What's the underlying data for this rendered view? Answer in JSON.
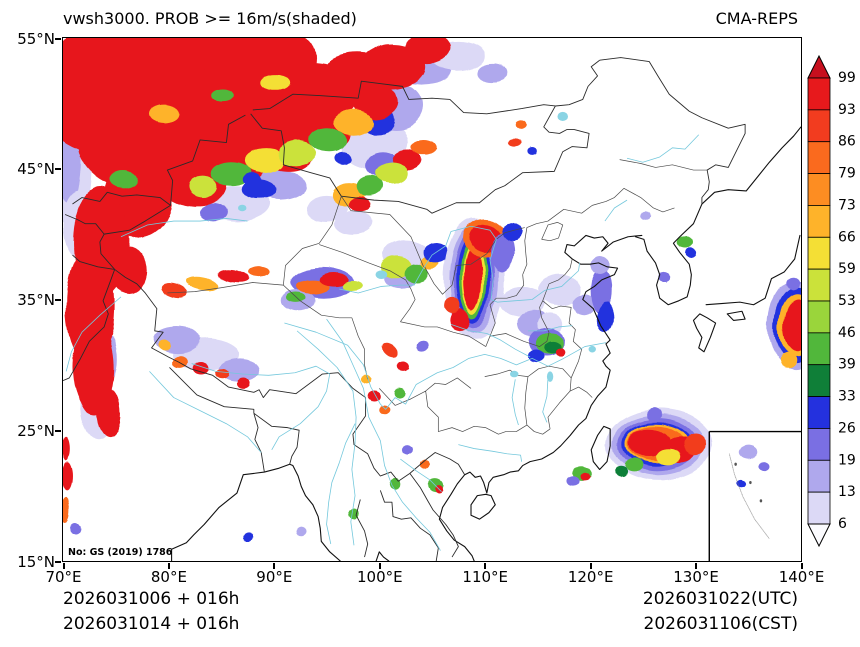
{
  "header": {
    "title": "vwsh3000. PROB >= 16m/s(shaded)",
    "model": "CMA-REPS"
  },
  "axes": {
    "x_ticks": [
      "70°E",
      "80°E",
      "90°E",
      "100°E",
      "110°E",
      "120°E",
      "130°E",
      "140°E"
    ],
    "y_ticks": [
      "55°N",
      "45°N",
      "35°N",
      "25°N",
      "15°N"
    ]
  },
  "colorbar": {
    "labels": [
      "99",
      "93",
      "86",
      "79",
      "73",
      "66",
      "59",
      "53",
      "46",
      "39",
      "33",
      "26",
      "19",
      "13",
      "6"
    ],
    "segment_colors": [
      "#C70F1E",
      "#E7191C",
      "#F23C1F",
      "#FA6A1E",
      "#FD8D22",
      "#FEB32A",
      "#F4DF35",
      "#CBE23A",
      "#9AD53B",
      "#51B73B",
      "#0F7F38",
      "#2431DE",
      "#7A6FE3",
      "#AFA8ED",
      "#DCD9F6",
      "#FBFBFE"
    ]
  },
  "map_note": "No: GS (2019) 1786",
  "footer": {
    "run_utc": "2026031006 + 016h",
    "run_cst": "2026031014 + 016h",
    "valid_utc": "2026031022(UTC)",
    "valid_cst": "2026031106(CST)"
  },
  "chart_data": {
    "type": "heatmap",
    "subtype": "filled-contour probability map",
    "variable": "vwsh3000 (vertical wind shear 0-3000 m)",
    "threshold": "probability of exceeding 16 m/s, shaded",
    "model": "CMA-REPS",
    "lon_range": [
      70,
      140
    ],
    "lat_range": [
      15,
      55
    ],
    "prob_levels": [
      6,
      13,
      19,
      26,
      33,
      39,
      46,
      53,
      59,
      66,
      73,
      79,
      86,
      93,
      99
    ],
    "regions_format": "[lon_deg, lat_deg, rx_deg, ry_deg, fill_color, rotation_deg?]",
    "shaded_regions": [
      [
        70.8,
        45.2,
        2.0,
        4.8,
        "#DCD9F6"
      ],
      [
        70.6,
        45.6,
        1.2,
        3.2,
        "#AFA8ED"
      ],
      [
        71.6,
        40.8,
        1.6,
        2.6,
        "#DCD9F6"
      ],
      [
        73.2,
        27.2,
        1.6,
        3.0,
        "#DCD9F6"
      ],
      [
        74.0,
        30.5,
        1.2,
        2.0,
        "#AFA8ED"
      ],
      [
        86.5,
        42.3,
        3.0,
        1.4,
        "#DCD9F6"
      ],
      [
        90.5,
        43.8,
        2.6,
        1.2,
        "#AFA8ED"
      ],
      [
        95.0,
        42.0,
        2.0,
        1.0,
        "#DCD9F6"
      ],
      [
        97.5,
        40.8,
        1.8,
        0.9,
        "#DCD9F6"
      ],
      [
        99.5,
        47.0,
        3.2,
        2.0,
        "#DCD9F6"
      ],
      [
        101.5,
        49.8,
        2.6,
        1.8,
        "#AFA8ED"
      ],
      [
        104.0,
        52.8,
        3.0,
        1.4,
        "#AFA8ED"
      ],
      [
        107.5,
        53.6,
        2.6,
        1.1,
        "#DCD9F6"
      ],
      [
        110.8,
        52.4,
        1.4,
        0.7,
        "#AFA8ED"
      ],
      [
        100.3,
        45.3,
        1.6,
        1.0,
        "#7A6FE3"
      ],
      [
        99.8,
        48.8,
        1.6,
        1.1,
        "#2431DE"
      ],
      [
        88.6,
        43.4,
        1.6,
        0.8,
        "#2431DE"
      ],
      [
        84.2,
        41.6,
        1.3,
        0.7,
        "#7A6FE3"
      ],
      [
        83.5,
        30.8,
        3.2,
        1.2,
        "#DCD9F6"
      ],
      [
        80.8,
        31.9,
        2.2,
        1.0,
        "#AFA8ED"
      ],
      [
        86.8,
        29.6,
        2.0,
        0.9,
        "#AFA8ED"
      ],
      [
        94.6,
        36.3,
        3.0,
        1.2,
        "#7A6FE3"
      ],
      [
        92.3,
        34.9,
        1.6,
        0.8,
        "#AFA8ED"
      ],
      [
        102.6,
        38.3,
        2.2,
        1.2,
        "#DCD9F6"
      ],
      [
        102.0,
        36.7,
        1.4,
        0.8,
        "#AFA8ED"
      ],
      [
        74.0,
        51.0,
        6.5,
        4.8,
        "#E7191C"
      ],
      [
        81.0,
        52.8,
        6.5,
        3.4,
        "#E7191C"
      ],
      [
        88.5,
        53.5,
        5.5,
        2.6,
        "#E7191C"
      ],
      [
        77.0,
        47.0,
        5.5,
        3.6,
        "#E7191C"
      ],
      [
        83.5,
        48.6,
        4.8,
        3.0,
        "#E7191C"
      ],
      [
        89.0,
        49.8,
        4.2,
        2.4,
        "#E7191C"
      ],
      [
        93.5,
        50.8,
        4.5,
        2.4,
        "#E7191C"
      ],
      [
        97.8,
        51.8,
        3.6,
        2.0,
        "#E7191C"
      ],
      [
        90.3,
        47.0,
        3.6,
        1.9,
        "#E7191C",
        -18
      ],
      [
        94.3,
        48.6,
        3.2,
        1.7,
        "#E7191C",
        -22
      ],
      [
        86.2,
        45.9,
        3.2,
        1.7,
        "#E7191C",
        -18
      ],
      [
        82.0,
        44.4,
        3.6,
        2.2,
        "#E7191C",
        -12
      ],
      [
        77.2,
        42.8,
        3.2,
        3.2,
        "#E7191C"
      ],
      [
        73.6,
        39.4,
        2.6,
        4.2,
        "#E7191C"
      ],
      [
        72.6,
        34.6,
        2.3,
        4.6,
        "#E7191C"
      ],
      [
        72.9,
        29.8,
        2.0,
        3.6,
        "#E7191C"
      ],
      [
        74.3,
        26.3,
        1.2,
        1.9,
        "#E7191C"
      ],
      [
        76.2,
        37.2,
        1.6,
        1.7,
        "#E7191C"
      ],
      [
        101.2,
        52.8,
        3.2,
        1.7,
        "#E7191C"
      ],
      [
        104.6,
        54.2,
        2.2,
        1.2,
        "#E7191C"
      ],
      [
        99.6,
        50.2,
        2.2,
        1.3,
        "#E7191C"
      ],
      [
        102.6,
        45.6,
        1.4,
        0.8,
        "#E7191C"
      ],
      [
        104.2,
        46.6,
        1.2,
        0.6,
        "#FA6A1E"
      ],
      [
        97.2,
        43.0,
        1.6,
        0.9,
        "#FEB32A"
      ],
      [
        99.2,
        43.6,
        1.3,
        0.8,
        "#51B73B"
      ],
      [
        98.2,
        42.2,
        1.1,
        0.6,
        "#E7191C"
      ],
      [
        101.2,
        44.6,
        1.5,
        0.8,
        "#CBE23A"
      ],
      [
        86.0,
        44.6,
        2.0,
        0.9,
        "#51B73B"
      ],
      [
        89.2,
        45.6,
        1.9,
        0.9,
        "#F4DF35"
      ],
      [
        92.2,
        46.2,
        1.8,
        0.9,
        "#CBE23A"
      ],
      [
        95.2,
        47.2,
        1.8,
        0.9,
        "#51B73B"
      ],
      [
        97.6,
        48.6,
        1.8,
        1.0,
        "#FEB32A"
      ],
      [
        83.2,
        43.6,
        1.4,
        0.8,
        "#C BE23A"
      ],
      [
        90.2,
        51.6,
        1.3,
        0.6,
        "#F4DF35"
      ],
      [
        85.2,
        50.6,
        1.1,
        0.5,
        "#51B73B"
      ],
      [
        79.6,
        49.2,
        1.4,
        0.7,
        "#FEB32A"
      ],
      [
        75.8,
        44.2,
        1.3,
        0.7,
        "#51B73B"
      ],
      [
        88.0,
        44.2,
        0.9,
        0.5,
        "#2431DE"
      ],
      [
        96.6,
        45.8,
        0.9,
        0.5,
        "#2431DE"
      ],
      [
        80.6,
        35.7,
        1.3,
        0.5,
        "#F23C1F",
        -12
      ],
      [
        83.2,
        36.2,
        1.5,
        0.5,
        "#FEB32A",
        -8
      ],
      [
        86.2,
        36.7,
        1.5,
        0.5,
        "#E7191C",
        -8
      ],
      [
        88.6,
        37.0,
        1.0,
        0.4,
        "#FA6A1E"
      ],
      [
        81.0,
        30.3,
        0.7,
        0.45,
        "#FA6A1E"
      ],
      [
        83.0,
        29.8,
        0.8,
        0.5,
        "#E7191C"
      ],
      [
        85.1,
        29.3,
        0.7,
        0.4,
        "#F23C1F"
      ],
      [
        87.1,
        28.6,
        0.6,
        0.4,
        "#E7191C"
      ],
      [
        79.6,
        31.5,
        0.6,
        0.4,
        "#FEB32A"
      ],
      [
        93.6,
        36.0,
        1.5,
        0.6,
        "#FA6A1E"
      ],
      [
        95.6,
        36.6,
        1.4,
        0.5,
        "#E7191C"
      ],
      [
        97.4,
        36.1,
        1.0,
        0.4,
        "#CBE23A"
      ],
      [
        92.1,
        35.1,
        0.9,
        0.4,
        "#51B73B"
      ],
      [
        101.6,
        37.5,
        1.4,
        0.8,
        "#CBE23A"
      ],
      [
        103.5,
        37.0,
        1.1,
        0.7,
        "#51B73B"
      ],
      [
        104.8,
        37.8,
        0.9,
        0.55,
        "#FEB32A"
      ],
      [
        105.4,
        38.6,
        1.2,
        0.8,
        "#2431DE"
      ],
      [
        109.0,
        36.6,
        2.9,
        4.6,
        "#DCD9F6"
      ],
      [
        109.0,
        36.6,
        2.3,
        4.1,
        "#AFA8ED"
      ],
      [
        108.95,
        36.6,
        1.9,
        3.7,
        "#7A6FE3"
      ],
      [
        108.9,
        36.6,
        1.6,
        3.3,
        "#2431DE"
      ],
      [
        108.9,
        36.6,
        1.3,
        3.0,
        "#51B73B"
      ],
      [
        108.9,
        36.6,
        1.05,
        2.7,
        "#F4DF35"
      ],
      [
        108.85,
        36.6,
        0.85,
        2.4,
        "#E7191C"
      ],
      [
        110.0,
        39.7,
        2.1,
        1.5,
        "#FA6A1E"
      ],
      [
        110.0,
        39.7,
        1.5,
        1.1,
        "#E7191C"
      ],
      [
        107.6,
        33.5,
        1.0,
        0.8,
        "#E7191C"
      ],
      [
        106.9,
        34.6,
        0.8,
        0.6,
        "#F23C1F"
      ],
      [
        111.6,
        38.6,
        1.1,
        1.5,
        "#7A6FE3"
      ],
      [
        112.6,
        40.1,
        1.0,
        0.7,
        "#2431DE"
      ],
      [
        113.6,
        34.8,
        2.1,
        1.2,
        "#DCD9F6"
      ],
      [
        114.6,
        33.1,
        1.5,
        1.0,
        "#AFA8ED"
      ],
      [
        117.1,
        35.7,
        2.0,
        1.2,
        "#DCD9F6"
      ],
      [
        119.4,
        34.6,
        1.1,
        0.8,
        "#AFA8ED"
      ],
      [
        116.1,
        33.1,
        1.2,
        0.8,
        "#DCD9F6"
      ],
      [
        121.0,
        35.6,
        1.0,
        1.7,
        "#7A6FE3"
      ],
      [
        121.5,
        33.6,
        0.8,
        1.2,
        "#2431DE"
      ],
      [
        120.9,
        37.6,
        0.9,
        0.8,
        "#AFA8ED"
      ],
      [
        115.9,
        31.7,
        1.7,
        1.1,
        "#7A6FE3"
      ],
      [
        116.2,
        31.6,
        1.3,
        0.85,
        "#51B73B"
      ],
      [
        116.5,
        31.3,
        0.8,
        0.5,
        "#0F7F38"
      ],
      [
        114.9,
        30.6,
        0.8,
        0.5,
        "#2431DE"
      ],
      [
        117.2,
        30.9,
        0.45,
        0.35,
        "#E7191C"
      ],
      [
        127.1,
        36.8,
        0.5,
        0.35,
        "#7A6FE3"
      ],
      [
        129.1,
        39.4,
        0.8,
        0.5,
        "#51B73B"
      ],
      [
        129.6,
        38.5,
        0.5,
        0.4,
        "#2431DE"
      ],
      [
        125.2,
        41.4,
        0.5,
        0.35,
        "#AFA8ED"
      ],
      [
        113.4,
        48.4,
        0.55,
        0.35,
        "#FA6A1E"
      ],
      [
        112.8,
        47.1,
        0.6,
        0.3,
        "#F23C1F"
      ],
      [
        114.4,
        46.4,
        0.45,
        0.3,
        "#2431DE"
      ],
      [
        126.6,
        23.9,
        5.0,
        2.7,
        "#DCD9F6"
      ],
      [
        126.5,
        23.9,
        4.3,
        2.3,
        "#AFA8ED"
      ],
      [
        126.4,
        23.9,
        3.7,
        2.0,
        "#7A6FE3"
      ],
      [
        126.3,
        23.95,
        3.2,
        1.7,
        "#2431DE"
      ],
      [
        126.3,
        24.0,
        2.9,
        1.5,
        "#FEB32A"
      ],
      [
        126.2,
        24.0,
        2.6,
        1.35,
        "#FA6A1E"
      ],
      [
        125.6,
        24.05,
        1.9,
        1.1,
        "#E7191C"
      ],
      [
        128.4,
        23.5,
        1.6,
        1.0,
        "#E7191C"
      ],
      [
        129.9,
        23.9,
        1.1,
        0.85,
        "#F23C1F"
      ],
      [
        127.4,
        22.95,
        1.1,
        0.6,
        "#F4DF35"
      ],
      [
        124.1,
        22.35,
        0.85,
        0.5,
        "#51B73B"
      ],
      [
        122.9,
        21.85,
        0.6,
        0.4,
        "#0F7F38"
      ],
      [
        126.2,
        26.2,
        0.7,
        0.45,
        "#7A6FE3"
      ],
      [
        119.3,
        21.8,
        0.95,
        0.6,
        "#51B73B"
      ],
      [
        119.6,
        21.55,
        0.5,
        0.35,
        "#E7191C"
      ],
      [
        118.4,
        21.2,
        0.6,
        0.4,
        "#7A6FE3"
      ],
      [
        139.5,
        33.0,
        2.6,
        3.4,
        "#AFA8ED"
      ],
      [
        139.6,
        33.0,
        2.1,
        2.9,
        "#2431DE"
      ],
      [
        139.6,
        33.0,
        1.7,
        2.4,
        "#FEB32A"
      ],
      [
        139.7,
        33.0,
        1.3,
        2.0,
        "#E7191C"
      ],
      [
        138.8,
        30.3,
        0.8,
        0.6,
        "#FEB32A"
      ],
      [
        139.2,
        36.2,
        0.6,
        0.5,
        "#7A6FE3"
      ],
      [
        105.3,
        20.8,
        0.75,
        0.5,
        "#51B73B"
      ],
      [
        105.6,
        20.5,
        0.4,
        0.3,
        "#E7191C"
      ],
      [
        104.4,
        22.3,
        0.5,
        0.35,
        "#FA6A1E"
      ],
      [
        102.6,
        23.5,
        0.5,
        0.4,
        "#7A6FE3"
      ],
      [
        101.5,
        21.0,
        0.5,
        0.4,
        "#51B73B"
      ],
      [
        97.6,
        18.6,
        0.5,
        0.35,
        "#51B73B"
      ],
      [
        92.6,
        17.2,
        0.5,
        0.35,
        "#AFA8ED"
      ],
      [
        87.6,
        16.8,
        0.5,
        0.35,
        "#2431DE"
      ],
      [
        70.4,
        21.5,
        0.5,
        1.1,
        "#E7191C"
      ],
      [
        70.3,
        19.0,
        0.45,
        0.9,
        "#FA6A1E"
      ],
      [
        71.2,
        17.6,
        0.5,
        0.5,
        "#7A6FE3"
      ],
      [
        70.25,
        23.6,
        0.35,
        0.9,
        "#E7191C"
      ],
      [
        99.5,
        27.6,
        0.6,
        0.4,
        "#E7191C"
      ],
      [
        100.5,
        26.5,
        0.55,
        0.35,
        "#FA6A1E"
      ],
      [
        101.9,
        27.9,
        0.5,
        0.4,
        "#51B73B"
      ],
      [
        98.9,
        28.9,
        0.5,
        0.35,
        "#FEB32A"
      ],
      [
        101.1,
        31.1,
        0.8,
        0.45,
        "#F23C1F",
        -30
      ],
      [
        102.4,
        29.9,
        0.6,
        0.4,
        "#E7191C"
      ],
      [
        104.1,
        31.6,
        0.6,
        0.4,
        "#7A6FE3"
      ],
      [
        135.0,
        23.4,
        0.9,
        0.5,
        "#AFA8ED"
      ],
      [
        136.6,
        22.4,
        0.55,
        0.35,
        "#7A6FE3"
      ],
      [
        134.2,
        20.9,
        0.45,
        0.3,
        "#2431DE"
      ]
    ]
  }
}
